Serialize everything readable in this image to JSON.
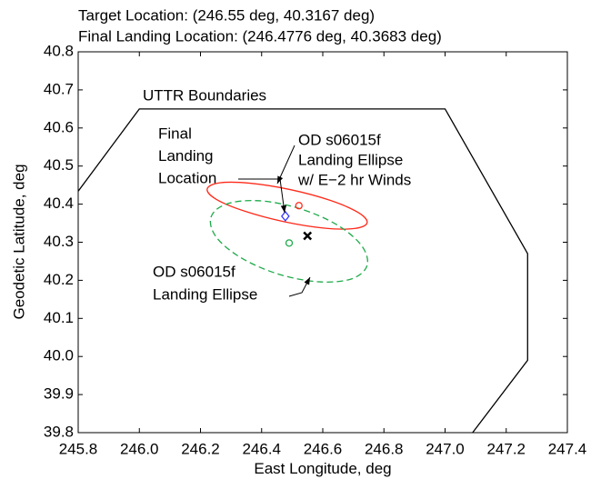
{
  "chart_data": {
    "type": "line",
    "title": [
      "Target Location: (246.55 deg, 40.3167 deg)",
      "Final Landing Location: (246.4776 deg, 40.3683 deg)"
    ],
    "xlabel": "East Longitude, deg",
    "ylabel": "Geodetic Latitude, deg",
    "xlim": [
      245.8,
      247.4
    ],
    "ylim": [
      39.8,
      40.8
    ],
    "xticks": [
      245.8,
      {
        "value": 246,
        "label": "246.0"
      },
      246.2,
      246.4,
      246.6,
      246.8,
      {
        "value": 247,
        "label": "247.0"
      },
      247.2,
      247.4
    ],
    "yticks": [
      39.8,
      39.9,
      {
        "value": 40,
        "label": "40.0"
      },
      40.1,
      40.2,
      40.3,
      40.4,
      40.5,
      40.6,
      40.7,
      40.8
    ],
    "series": [
      {
        "name": "UTTR Boundaries",
        "color": "#000000",
        "style": "solid",
        "x": [
          245.8,
          246.0,
          247.0,
          247.27,
          247.27,
          247.09
        ],
        "y": [
          40.434,
          40.65,
          40.65,
          40.27,
          39.99,
          39.8
        ]
      },
      {
        "name": "OD s06015f Landing Ellipse w/ E-2 hr Winds",
        "color": "#ff2a1a",
        "style": "solid",
        "closed": true,
        "x": [
          246.745,
          246.704,
          246.605,
          246.473,
          246.343,
          246.251,
          246.222,
          246.263,
          246.362,
          246.495,
          246.624,
          246.716
        ],
        "y": [
          40.351,
          40.336,
          40.337,
          40.354,
          40.382,
          40.413,
          40.44,
          40.456,
          40.455,
          40.438,
          40.41,
          40.378
        ]
      },
      {
        "name": "OD s06015f Landing Ellipse",
        "color": "#1faa4a",
        "style": "dashed",
        "closed": true,
        "x": [
          246.745,
          246.695,
          246.589,
          246.456,
          246.333,
          246.252,
          246.234,
          246.284,
          246.39,
          246.522,
          246.646,
          246.727
        ],
        "y": [
          40.239,
          40.204,
          40.196,
          40.216,
          40.259,
          40.313,
          40.365,
          40.4,
          40.409,
          40.389,
          40.346,
          40.291
        ]
      }
    ],
    "markers": [
      {
        "shape": "circle",
        "color": "#ff2a1a",
        "x": 246.522,
        "y": 40.396
      },
      {
        "shape": "circle",
        "color": "#1faa4a",
        "x": 246.49,
        "y": 40.298
      },
      {
        "shape": "cross",
        "color": "#000000",
        "x": 246.55,
        "y": 40.3167
      },
      {
        "shape": "diamond",
        "color": "#3333ff",
        "x": 246.4776,
        "y": 40.3683
      }
    ],
    "annotations": [
      {
        "text": [
          "UTTR Boundaries"
        ]
      },
      {
        "text": [
          "Final",
          "Landing",
          "Location"
        ]
      },
      {
        "text": [
          "OD s06015f",
          "Landing Ellipse",
          "w/ E−2 hr Winds"
        ]
      },
      {
        "text": [
          "OD s06015f",
          "Landing Ellipse"
        ]
      }
    ]
  }
}
